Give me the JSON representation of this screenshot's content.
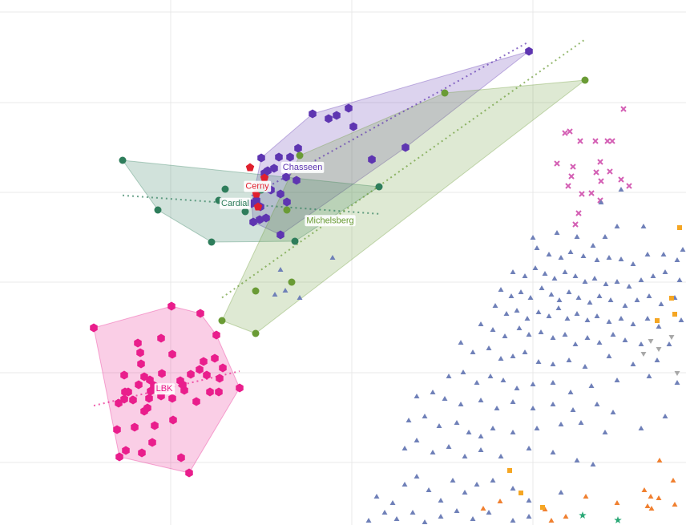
{
  "chart_data": {
    "type": "scatter",
    "xlim": [
      0,
      856
    ],
    "ylim": [
      655,
      0
    ],
    "xticks": [
      213,
      439,
      665
    ],
    "yticks": [
      15,
      128,
      240,
      352,
      465,
      577
    ],
    "grid": true,
    "series": [
      {
        "name": "Chasseen",
        "color": "#5e35b1",
        "marker": "hexagon",
        "hull": true,
        "trend": true,
        "x": [
          660,
          390,
          410,
          420,
          435,
          441,
          506,
          464,
          372,
          348,
          362,
          326,
          334,
          342,
          330,
          357,
          370,
          338,
          350,
          358,
          320,
          325,
          332,
          316,
          324,
          350,
          314
        ],
        "values": [
          64,
          142,
          148,
          144,
          135,
          158,
          184,
          199,
          185,
          196,
          196,
          197,
          213,
          210,
          216,
          221,
          225,
          237,
          242,
          252,
          250,
          258,
          272,
          277,
          274,
          293,
          254
        ]
      },
      {
        "name": "Cerny",
        "color": "#e0202e",
        "marker": "pentagon",
        "hull": false,
        "trend": false,
        "x": [
          312,
          320,
          322,
          330
        ],
        "values": [
          209,
          242,
          258,
          222
        ]
      },
      {
        "name": "Cardial",
        "color": "#2e7d5b",
        "marker": "circle",
        "hull": true,
        "trend": true,
        "x": [
          153,
          197,
          264,
          273,
          281,
          306,
          368,
          473,
          326
        ],
        "values": [
          200,
          262,
          302,
          250,
          236,
          264,
          301,
          233,
          237
        ]
      },
      {
        "name": "Michelsberg",
        "color": "#6a9b35",
        "marker": "circle",
        "hull": true,
        "trend": true,
        "x": [
          730,
          555,
          374,
          358,
          364,
          319,
          277,
          319
        ],
        "values": [
          100,
          116,
          194,
          262,
          352,
          363,
          400,
          416
        ]
      },
      {
        "name": "LBK",
        "color": "#e91e8c",
        "marker": "hexagon",
        "hull": true,
        "trend": true,
        "x": [
          117,
          214,
          250,
          270,
          299,
          236,
          149,
          157,
          177,
          190,
          226,
          146,
          168,
          193,
          216,
          245,
          262,
          273,
          274,
          278,
          268,
          254,
          238,
          249,
          258,
          228,
          230,
          215,
          201,
          186,
          184,
          180,
          166,
          155,
          148,
          156,
          160,
          173,
          180,
          187,
          192,
          202,
          176,
          172,
          175,
          201,
          215,
          155,
          225,
          188,
          198,
          207
        ],
        "values": [
          409,
          382,
          391,
          418,
          484,
          590,
          570,
          562,
          565,
          552,
          571,
          536,
          533,
          531,
          524,
          501,
          489,
          489,
          472,
          459,
          447,
          451,
          467,
          461,
          468,
          480,
          487,
          497,
          494,
          497,
          509,
          513,
          499,
          498,
          503,
          489,
          489,
          480,
          470,
          474,
          481,
          466,
          454,
          428,
          440,
          422,
          442,
          468,
          475,
          488,
          486,
          485
        ]
      },
      {
        "color": "#d45fb4",
        "marker": "cross",
        "hull": false,
        "trend": false,
        "x": [
          778,
          705,
          711,
          724,
          743,
          758,
          764,
          749,
          695,
          715,
          761,
          744,
          713,
          775,
          785,
          750,
          709,
          738,
          726,
          749,
          718,
          722
        ],
        "values": [
          136,
          166,
          164,
          176,
          176,
          176,
          176,
          202,
          204,
          208,
          214,
          215,
          220,
          224,
          232,
          226,
          232,
          241,
          242,
          250,
          280,
          266
        ]
      },
      {
        "color": "#6f80b8",
        "marker": "triangle",
        "hull": false,
        "trend": false,
        "x": [
          665,
          695,
          720,
          740,
          755,
          770,
          803,
          750,
          775,
          415,
          350,
          356,
          374,
          343,
          670,
          685,
          700,
          712,
          728,
          745,
          760,
          775,
          790,
          808,
          828,
          845,
          852,
          640,
          655,
          668,
          680,
          692,
          705,
          718,
          730,
          742,
          756,
          770,
          785,
          800,
          815,
          830,
          848,
          625,
          638,
          650,
          662,
          676,
          688,
          698,
          710,
          722,
          736,
          748,
          762,
          780,
          795,
          810,
          825,
          842,
          618,
          632,
          645,
          658,
          672,
          685,
          697,
          708,
          720,
          733,
          745,
          760,
          775,
          790,
          808,
          822,
          850,
          600,
          615,
          630,
          648,
          660,
          675,
          690,
          705,
          718,
          733,
          748,
          765,
          780,
          800,
          835,
          575,
          590,
          610,
          625,
          640,
          655,
          672,
          690,
          710,
          730,
          760,
          790,
          820,
          560,
          578,
          595,
          612,
          628,
          645,
          665,
          690,
          712,
          738,
          770,
          810,
          845,
          520,
          540,
          555,
          575,
          600,
          620,
          640,
          665,
          690,
          715,
          745,
          765,
          830,
          510,
          530,
          548,
          570,
          585,
          600,
          615,
          640,
          670,
          700,
          725,
          755,
          800,
          505,
          520,
          540,
          560,
          580,
          600,
          625,
          660,
          690,
          720,
          740,
          470,
          490,
          505,
          520,
          535,
          550,
          565,
          580,
          595,
          615,
          640,
          660,
          700,
          460,
          480,
          495,
          515,
          530,
          550,
          570,
          590,
          610,
          640,
          660
        ],
        "values": [
          297,
          291,
          296,
          307,
          296,
          283,
          283,
          253,
          237,
          322,
          337,
          363,
          372,
          368,
          310,
          318,
          322,
          315,
          320,
          325,
          322,
          324,
          330,
          318,
          318,
          325,
          312,
          340,
          345,
          335,
          342,
          348,
          340,
          345,
          352,
          348,
          355,
          352,
          358,
          350,
          345,
          340,
          350,
          362,
          370,
          365,
          372,
          360,
          368,
          375,
          365,
          372,
          378,
          370,
          375,
          382,
          375,
          370,
          380,
          372,
          382,
          392,
          388,
          398,
          390,
          395,
          385,
          398,
          392,
          400,
          395,
          402,
          398,
          405,
          398,
          408,
          400,
          405,
          412,
          420,
          410,
          418,
          415,
          422,
          418,
          430,
          422,
          428,
          418,
          425,
          430,
          430,
          428,
          440,
          435,
          448,
          445,
          440,
          452,
          455,
          450,
          458,
          445,
          455,
          450,
          470,
          465,
          478,
          470,
          475,
          485,
          480,
          478,
          490,
          482,
          475,
          470,
          478,
          495,
          490,
          498,
          505,
          500,
          510,
          502,
          510,
          505,
          512,
          505,
          515,
          520,
          525,
          520,
          532,
          528,
          540,
          545,
          535,
          540,
          535,
          530,
          528,
          540,
          535,
          560,
          550,
          565,
          558,
          570,
          562,
          570,
          560,
          565,
          575,
          580,
          620,
          628,
          605,
          595,
          612,
          625,
          600,
          615,
          605,
          600,
          610,
          625,
          615,
          650,
          640,
          648,
          640,
          652,
          645,
          638,
          648,
          640,
          650,
          645
        ]
      },
      {
        "color": "#f08030",
        "marker": "triangle",
        "hull": false,
        "trend": false,
        "x": [
          823,
          804,
          812,
          808,
          813,
          822,
          840,
          842,
          603,
          624,
          680,
          688,
          706,
          770,
          731
        ],
        "values": [
          575,
          612,
          620,
          632,
          635,
          622,
          600,
          630,
          635,
          626,
          636,
          650,
          645,
          628,
          620
        ]
      },
      {
        "color": "#f5a623",
        "marker": "square",
        "hull": false,
        "trend": false,
        "x": [
          848,
          838,
          842,
          820,
          636,
          650,
          677
        ],
        "values": [
          284,
          372,
          392,
          400,
          587,
          615,
          633
        ]
      },
      {
        "color": "#a8a8a8",
        "marker": "triangle-down",
        "hull": false,
        "trend": false,
        "x": [
          803,
          822,
          838,
          845,
          812
        ],
        "values": [
          441,
          435,
          420,
          465,
          425
        ]
      },
      {
        "color": "#2aa876",
        "marker": "star",
        "hull": false,
        "trend": false,
        "x": [
          727,
          771
        ],
        "values": [
          643,
          649
        ]
      }
    ]
  }
}
